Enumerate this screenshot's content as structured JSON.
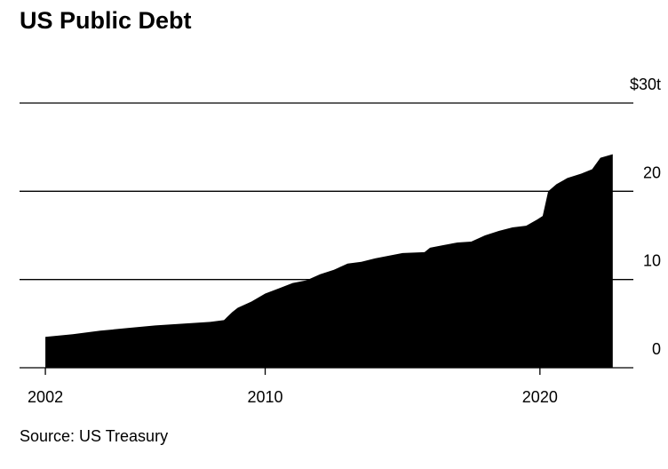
{
  "chart_data": {
    "type": "area",
    "title": "US Public Debt",
    "source": "Source: US Treasury",
    "series": [
      {
        "name": "US public debt",
        "color": "#000000",
        "x": [
          2002.0,
          2003.0,
          2004.0,
          2005.0,
          2006.0,
          2007.0,
          2008.0,
          2008.5,
          2008.8,
          2009.0,
          2009.5,
          2010.0,
          2010.5,
          2011.0,
          2011.5,
          2012.0,
          2012.5,
          2013.0,
          2013.5,
          2014.0,
          2014.5,
          2015.0,
          2015.8,
          2016.0,
          2016.5,
          2017.0,
          2017.5,
          2018.0,
          2018.5,
          2019.0,
          2019.5,
          2019.9,
          2020.1,
          2020.3,
          2020.6,
          2021.0,
          2021.5,
          2021.9,
          2022.2,
          2022.65
        ],
        "values": [
          3.5,
          3.8,
          4.2,
          4.5,
          4.8,
          5.0,
          5.2,
          5.4,
          6.3,
          6.8,
          7.5,
          8.4,
          9.0,
          9.6,
          9.9,
          10.6,
          11.1,
          11.8,
          12.0,
          12.4,
          12.7,
          13.0,
          13.1,
          13.6,
          13.9,
          14.2,
          14.3,
          15.0,
          15.5,
          15.9,
          16.1,
          16.8,
          17.2,
          20.0,
          20.8,
          21.5,
          22.0,
          22.5,
          23.8,
          24.2
        ]
      }
    ],
    "xlim": [
      2001.06,
      2023.4
    ],
    "xticks": [
      2002,
      2010,
      2020
    ],
    "ylim": [
      0,
      30
    ],
    "yticks": [
      0,
      10,
      20,
      {
        "value": 30,
        "label": "$30t"
      }
    ],
    "grid": true
  }
}
